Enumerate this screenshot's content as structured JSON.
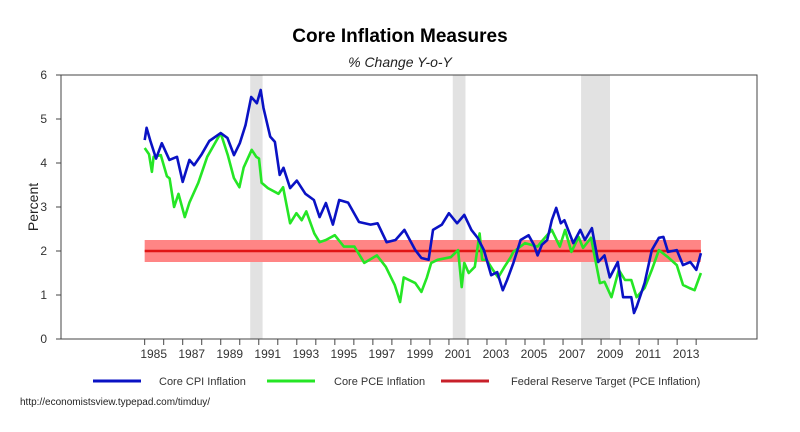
{
  "chart_data": {
    "type": "line",
    "title": "Core Inflation Measures",
    "subtitle": "% Change Y-o-Y",
    "xlabel": "",
    "ylabel": "Percent",
    "xlim": [
      1980.6,
      2017.2
    ],
    "ylim": [
      0,
      6
    ],
    "yticks": [
      0,
      1,
      2,
      3,
      4,
      5,
      6
    ],
    "xtick_labels": [
      "1985",
      "1987",
      "1989",
      "1991",
      "1993",
      "1995",
      "1997",
      "1999",
      "2001",
      "2003",
      "2005",
      "2007",
      "2009",
      "2011",
      "2013"
    ],
    "grid": false,
    "legend_placement": "bottom",
    "recessions": [
      [
        1990.55,
        1991.2
      ],
      [
        2001.2,
        2001.87
      ],
      [
        2007.95,
        2009.47
      ]
    ],
    "target": {
      "name": "Federal Reserve Target (PCE Inflation)",
      "value": 2.0,
      "band": [
        1.75,
        2.25
      ],
      "start": 1985.0,
      "end": 2014.25,
      "color": "#e01515",
      "band_color": "#ff8585"
    },
    "series": [
      {
        "name": "Core CPI Inflation",
        "color": "#0a12c4",
        "x": [
          1985.0,
          1985.1,
          1985.3,
          1985.6,
          1985.9,
          1986.3,
          1986.7,
          1987.0,
          1987.35,
          1987.6,
          1988.0,
          1988.4,
          1989.0,
          1989.35,
          1989.7,
          1990.0,
          1990.3,
          1990.6,
          1990.9,
          1991.1,
          1991.25,
          1991.6,
          1991.85,
          1992.1,
          1992.3,
          1992.65,
          1993.0,
          1993.45,
          1993.9,
          1994.2,
          1994.53,
          1994.9,
          1995.23,
          1995.7,
          1996.27,
          1996.88,
          1997.25,
          1997.72,
          1998.19,
          1998.66,
          1999.23,
          1999.55,
          1999.93,
          2000.16,
          2000.63,
          2001.0,
          2001.43,
          2001.81,
          2002.18,
          2002.51,
          2002.84,
          2003.22,
          2003.54,
          2003.83,
          2004.06,
          2004.39,
          2004.77,
          2005.19,
          2005.47,
          2005.66,
          2005.89,
          2006.17,
          2006.41,
          2006.64,
          2006.88,
          2007.07,
          2007.54,
          2007.91,
          2008.15,
          2008.52,
          2008.85,
          2009.18,
          2009.46,
          2009.88,
          2010.16,
          2010.59,
          2010.73,
          2010.87,
          2011.29,
          2011.67,
          2012.04,
          2012.28,
          2012.52,
          2012.98,
          2013.31,
          2013.69,
          2014.01,
          2014.25
        ],
        "y": [
          4.52,
          4.8,
          4.5,
          4.1,
          4.45,
          4.07,
          4.14,
          3.57,
          4.07,
          3.95,
          4.2,
          4.5,
          4.68,
          4.57,
          4.18,
          4.45,
          4.86,
          5.5,
          5.36,
          5.66,
          5.25,
          4.6,
          4.48,
          3.73,
          3.89,
          3.43,
          3.6,
          3.3,
          3.16,
          2.77,
          3.09,
          2.6,
          3.16,
          3.1,
          2.66,
          2.6,
          2.63,
          2.2,
          2.25,
          2.48,
          2.02,
          1.84,
          1.8,
          2.48,
          2.6,
          2.86,
          2.63,
          2.82,
          2.48,
          2.3,
          2.02,
          1.45,
          1.52,
          1.11,
          1.34,
          1.73,
          2.25,
          2.36,
          2.14,
          1.9,
          2.14,
          2.25,
          2.7,
          2.98,
          2.63,
          2.7,
          2.18,
          2.48,
          2.25,
          2.52,
          1.75,
          1.9,
          1.4,
          1.75,
          0.95,
          0.95,
          0.59,
          0.73,
          1.27,
          2.02,
          2.3,
          2.32,
          1.98,
          2.02,
          1.68,
          1.75,
          1.57,
          1.95
        ]
      },
      {
        "name": "Core PCE Inflation",
        "color": "#25e625",
        "x": [
          1985.0,
          1985.23,
          1985.38,
          1985.47,
          1985.85,
          1986.17,
          1986.31,
          1986.55,
          1986.78,
          1987.11,
          1987.35,
          1987.82,
          1988.29,
          1988.76,
          1989.0,
          1989.37,
          1989.69,
          1989.98,
          1990.21,
          1990.63,
          1990.87,
          1991.01,
          1991.15,
          1991.48,
          1992.04,
          1992.28,
          1992.65,
          1992.98,
          1993.26,
          1993.5,
          1993.92,
          1994.2,
          1994.53,
          1995.0,
          1995.47,
          1996.03,
          1996.55,
          1997.21,
          1997.68,
          1998.15,
          1998.43,
          1998.62,
          1999.23,
          1999.55,
          1999.84,
          2000.07,
          2000.4,
          2001.1,
          2001.48,
          2001.67,
          2001.81,
          2002.04,
          2002.36,
          2002.61,
          2002.75,
          2002.98,
          2003.31,
          2003.59,
          2003.92,
          2004.25,
          2004.39,
          2005.0,
          2005.66,
          2005.94,
          2006.41,
          2006.83,
          2007.11,
          2007.44,
          2007.82,
          2008.05,
          2008.47,
          2008.94,
          2009.18,
          2009.55,
          2009.93,
          2010.26,
          2010.59,
          2010.87,
          2011.29,
          2011.67,
          2012.04,
          2012.52,
          2012.98,
          2013.31,
          2013.64,
          2013.92,
          2014.25
        ],
        "y": [
          4.34,
          4.2,
          3.8,
          4.14,
          4.18,
          3.7,
          3.65,
          3.0,
          3.3,
          2.77,
          3.1,
          3.55,
          4.14,
          4.5,
          4.68,
          4.18,
          3.66,
          3.45,
          3.9,
          4.3,
          4.14,
          4.1,
          3.55,
          3.43,
          3.3,
          3.45,
          2.63,
          2.86,
          2.7,
          2.9,
          2.4,
          2.2,
          2.25,
          2.36,
          2.1,
          2.1,
          1.73,
          1.9,
          1.64,
          1.23,
          0.84,
          1.4,
          1.27,
          1.07,
          1.4,
          1.73,
          1.8,
          1.86,
          2.02,
          1.18,
          1.73,
          1.5,
          1.64,
          2.4,
          1.8,
          1.8,
          1.57,
          1.4,
          1.64,
          1.86,
          1.98,
          2.18,
          2.1,
          2.25,
          2.48,
          2.1,
          2.48,
          1.98,
          2.32,
          2.07,
          2.3,
          1.27,
          1.3,
          0.95,
          1.57,
          1.34,
          1.34,
          0.95,
          1.16,
          1.57,
          2.02,
          1.86,
          1.68,
          1.23,
          1.16,
          1.11,
          1.5
        ]
      }
    ]
  },
  "footer": {
    "source": "http://economistsview.typepad.com/timduy/"
  }
}
